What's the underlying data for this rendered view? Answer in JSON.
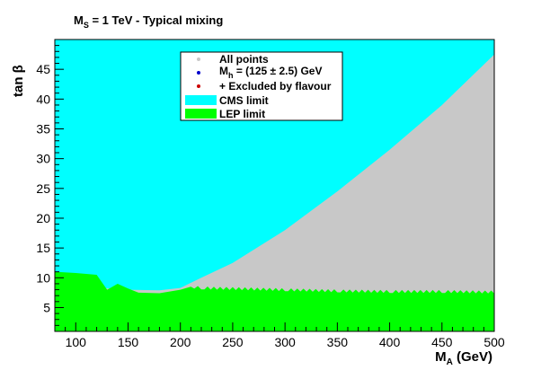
{
  "chart_data": {
    "type": "area",
    "title_main": "M",
    "title_sub": "S",
    "title_rest": " = 1 TeV  -  Typical mixing",
    "xlabel_main": "M",
    "xlabel_sub": "A",
    "xlabel_rest": " (GeV)",
    "ylabel": "tan β",
    "xlim": [
      80,
      500
    ],
    "ylim": [
      1,
      50
    ],
    "xticks": [
      100,
      150,
      200,
      250,
      300,
      350,
      400,
      450,
      500
    ],
    "yticks": [
      5,
      10,
      15,
      20,
      25,
      30,
      35,
      40,
      45
    ],
    "grid": false,
    "legend_position": "top-center",
    "legend": [
      {
        "label": "All points",
        "symbol": "marker",
        "color": "#c8c8c8"
      },
      {
        "label_main": "M",
        "label_sub": "h",
        "label_rest": " = (125 ± 2.5) GeV",
        "symbol": "marker",
        "color": "#0000cc"
      },
      {
        "label": "+ Excluded by flavour",
        "symbol": "marker",
        "color": "#cc0000"
      },
      {
        "label": "CMS limit",
        "symbol": "box",
        "color": "#00ffff"
      },
      {
        "label": "LEP limit",
        "symbol": "box",
        "color": "#00ff00"
      }
    ],
    "series": [
      {
        "name": "All points",
        "color": "#c8c8c8",
        "region": "full plot area"
      },
      {
        "name": "CMS limit",
        "color": "#00ffff",
        "boundary_x": [
          80,
          150,
          180,
          200,
          220,
          250,
          300,
          350,
          400,
          450,
          500
        ],
        "boundary_y": [
          8.8,
          8.0,
          7.9,
          8.3,
          10.0,
          12.5,
          18.0,
          24.5,
          31.5,
          39.0,
          47.5
        ]
      },
      {
        "name": "LEP limit",
        "color": "#00ff00",
        "boundary_x": [
          80,
          100,
          120,
          130,
          140,
          150,
          160,
          180,
          200,
          210,
          220,
          250,
          300,
          350,
          400,
          450,
          500
        ],
        "boundary_y": [
          11.0,
          10.8,
          10.5,
          8.0,
          9.0,
          8.2,
          7.5,
          7.4,
          8.0,
          8.5,
          8.3,
          8.2,
          8.0,
          7.8,
          7.7,
          7.7,
          7.6
        ]
      }
    ]
  }
}
